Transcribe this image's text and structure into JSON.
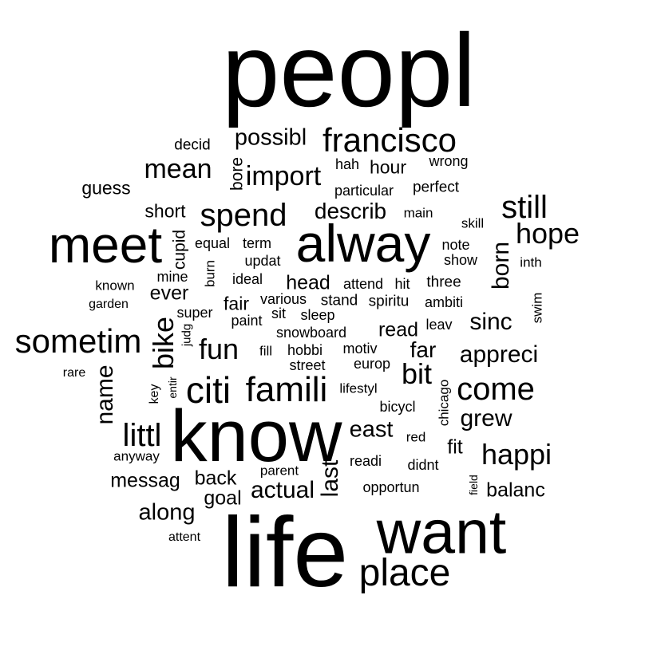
{
  "text_color": "#000000",
  "words": [
    {
      "text": "peopl",
      "size": 1.0
    },
    {
      "text": "life",
      "size": 0.96
    },
    {
      "text": "know",
      "size": 0.72
    },
    {
      "text": "want",
      "size": 0.6
    },
    {
      "text": "meet",
      "size": 0.5
    },
    {
      "text": "alway",
      "size": 0.52
    },
    {
      "text": "place",
      "size": 0.45
    },
    {
      "text": "citi",
      "size": 0.38
    },
    {
      "text": "famili",
      "size": 0.38
    },
    {
      "text": "francisco",
      "size": 0.38
    },
    {
      "text": "sometim",
      "size": 0.34
    },
    {
      "text": "spend",
      "size": 0.34
    },
    {
      "text": "come",
      "size": 0.34
    },
    {
      "text": "happi",
      "size": 0.3
    },
    {
      "text": "still",
      "size": 0.34
    },
    {
      "text": "hope",
      "size": 0.32
    },
    {
      "text": "littl",
      "size": 0.32
    },
    {
      "text": "bike",
      "size": 0.3
    },
    {
      "text": "fun",
      "size": 0.3
    },
    {
      "text": "mean",
      "size": 0.28
    },
    {
      "text": "bit",
      "size": 0.3
    },
    {
      "text": "import",
      "size": 0.28
    },
    {
      "text": "name",
      "size": 0.26
    },
    {
      "text": "born",
      "size": 0.26
    },
    {
      "text": "sinc",
      "size": 0.26
    },
    {
      "text": "grew",
      "size": 0.26
    },
    {
      "text": "last",
      "size": 0.26
    },
    {
      "text": "actual",
      "size": 0.26
    },
    {
      "text": "east",
      "size": 0.24
    },
    {
      "text": "along",
      "size": 0.24
    },
    {
      "text": "possibl",
      "size": 0.24
    },
    {
      "text": "describ",
      "size": 0.22
    },
    {
      "text": "appreci",
      "size": 0.24
    },
    {
      "text": "far",
      "size": 0.22
    },
    {
      "text": "back",
      "size": 0.2
    },
    {
      "text": "goal",
      "size": 0.2
    },
    {
      "text": "messag",
      "size": 0.2
    },
    {
      "text": "ever",
      "size": 0.2
    },
    {
      "text": "read",
      "size": 0.2
    },
    {
      "text": "head",
      "size": 0.2
    },
    {
      "text": "fit",
      "size": 0.2
    },
    {
      "text": "balanc",
      "size": 0.2
    },
    {
      "text": "short",
      "size": 0.19
    },
    {
      "text": "guess",
      "size": 0.19
    },
    {
      "text": "hour",
      "size": 0.19
    },
    {
      "text": "fair",
      "size": 0.19
    },
    {
      "text": "cupid",
      "size": 0.18
    },
    {
      "text": "bore",
      "size": 0.18
    },
    {
      "text": "decid",
      "size": 0.16
    },
    {
      "text": "hah",
      "size": 0.15
    },
    {
      "text": "wrong",
      "size": 0.15
    },
    {
      "text": "particular",
      "size": 0.15
    },
    {
      "text": "perfect",
      "size": 0.16
    },
    {
      "text": "main",
      "size": 0.14
    },
    {
      "text": "skill",
      "size": 0.14
    },
    {
      "text": "equal",
      "size": 0.15
    },
    {
      "text": "term",
      "size": 0.15
    },
    {
      "text": "updat",
      "size": 0.15
    },
    {
      "text": "burn",
      "size": 0.14
    },
    {
      "text": "note",
      "size": 0.15
    },
    {
      "text": "show",
      "size": 0.15
    },
    {
      "text": "inth",
      "size": 0.14
    },
    {
      "text": "known",
      "size": 0.14
    },
    {
      "text": "mine",
      "size": 0.15
    },
    {
      "text": "ideal",
      "size": 0.15
    },
    {
      "text": "attend",
      "size": 0.15
    },
    {
      "text": "hit",
      "size": 0.15
    },
    {
      "text": "three",
      "size": 0.16
    },
    {
      "text": "garden",
      "size": 0.13
    },
    {
      "text": "super",
      "size": 0.15
    },
    {
      "text": "various",
      "size": 0.15
    },
    {
      "text": "stand",
      "size": 0.16
    },
    {
      "text": "spiritu",
      "size": 0.16
    },
    {
      "text": "ambiti",
      "size": 0.15
    },
    {
      "text": "swim",
      "size": 0.14
    },
    {
      "text": "paint",
      "size": 0.15
    },
    {
      "text": "sit",
      "size": 0.15
    },
    {
      "text": "sleep",
      "size": 0.15
    },
    {
      "text": "leav",
      "size": 0.15
    },
    {
      "text": "judg",
      "size": 0.13
    },
    {
      "text": "snowboard",
      "size": 0.15
    },
    {
      "text": "fill",
      "size": 0.14
    },
    {
      "text": "hobbi",
      "size": 0.15
    },
    {
      "text": "motiv",
      "size": 0.15
    },
    {
      "text": "street",
      "size": 0.15
    },
    {
      "text": "europ",
      "size": 0.15
    },
    {
      "text": "rare",
      "size": 0.13
    },
    {
      "text": "entir",
      "size": 0.12
    },
    {
      "text": "key",
      "size": 0.13
    },
    {
      "text": "lifestyl",
      "size": 0.14
    },
    {
      "text": "chicago",
      "size": 0.14
    },
    {
      "text": "bicycl",
      "size": 0.15
    },
    {
      "text": "red",
      "size": 0.14
    },
    {
      "text": "anyway",
      "size": 0.14
    },
    {
      "text": "parent",
      "size": 0.14
    },
    {
      "text": "readi",
      "size": 0.15
    },
    {
      "text": "didnt",
      "size": 0.15
    },
    {
      "text": "opportun",
      "size": 0.15
    },
    {
      "text": "field",
      "size": 0.12
    },
    {
      "text": "attent",
      "size": 0.14
    }
  ]
}
